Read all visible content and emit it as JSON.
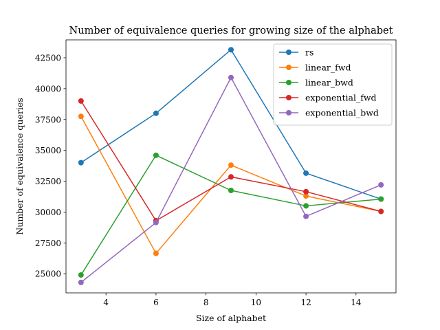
{
  "chart_data": {
    "type": "line",
    "title": "Number of equivalence queries for growing size of the alphabet",
    "xlabel": "Size of alphabet",
    "ylabel": "Number of equivalence queries",
    "x": [
      3,
      6,
      9,
      12,
      15
    ],
    "xlim": [
      2.4,
      15.6
    ],
    "ylim": [
      23450,
      43950
    ],
    "xticks": [
      4,
      6,
      8,
      10,
      12,
      14
    ],
    "yticks": [
      25000,
      27500,
      30000,
      32500,
      35000,
      37500,
      40000,
      42500
    ],
    "grid": false,
    "legend": "top-right",
    "markers": "circle",
    "series": [
      {
        "name": "rs",
        "color": "#1f77b4",
        "values": [
          34000,
          38000,
          43150,
          33150,
          31050
        ]
      },
      {
        "name": "linear_fwd",
        "color": "#ff7f0e",
        "values": [
          37750,
          26650,
          33800,
          31300,
          30050
        ]
      },
      {
        "name": "linear_bwd",
        "color": "#2ca02c",
        "values": [
          24900,
          34600,
          31750,
          30500,
          31050
        ]
      },
      {
        "name": "exponential_fwd",
        "color": "#d62728",
        "values": [
          39000,
          29300,
          32850,
          31650,
          30050
        ]
      },
      {
        "name": "exponential_bwd",
        "color": "#9467bd",
        "values": [
          24300,
          29150,
          40900,
          29650,
          32200
        ]
      }
    ]
  }
}
